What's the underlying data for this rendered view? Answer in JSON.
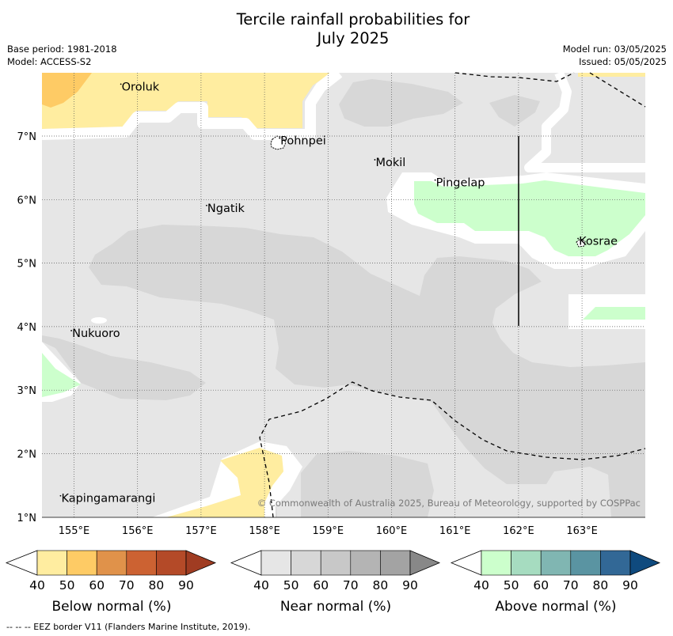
{
  "title_line1": "Tercile rainfall probabilities for",
  "title_line2": "July 2025",
  "base_period": "Base period: 1981-2018",
  "model": "Model: ACCESS-S2",
  "model_run": "Model run: 03/05/2025",
  "issued": "Issued: 05/05/2025",
  "lat_labels": [
    "7°N",
    "6°N",
    "5°N",
    "4°N",
    "3°N",
    "2°N",
    "1°N"
  ],
  "lat_values": [
    7,
    6,
    5,
    4,
    3,
    2,
    1
  ],
  "lon_labels": [
    "155°E",
    "156°E",
    "157°E",
    "158°E",
    "159°E",
    "160°E",
    "161°E",
    "162°E",
    "163°E"
  ],
  "lon_values": [
    155,
    156,
    157,
    158,
    159,
    160,
    161,
    162,
    163
  ],
  "places": [
    {
      "name": "Oroluk",
      "lon": 155.75,
      "lat": 7.73
    },
    {
      "name": "Pohnpei",
      "lon": 158.25,
      "lat": 6.88
    },
    {
      "name": "Mokil",
      "lon": 159.75,
      "lat": 6.54
    },
    {
      "name": "Pingelap",
      "lon": 160.7,
      "lat": 6.22
    },
    {
      "name": "Ngatik",
      "lon": 157.1,
      "lat": 5.82
    },
    {
      "name": "Kosrae",
      "lon": 162.95,
      "lat": 5.3
    },
    {
      "name": "Nukuoro",
      "lon": 154.97,
      "lat": 3.85
    },
    {
      "name": "Kapingamarangi",
      "lon": 154.8,
      "lat": 1.25
    }
  ],
  "copyright": "© Commonwealth of Australia 2025, Bureau of Meteorology, supported by COSPPac",
  "colorbars": [
    {
      "label": "Below normal (%)",
      "ticks": [
        "40",
        "50",
        "60",
        "70",
        "80",
        "90"
      ],
      "colors": [
        "#ffffff",
        "#ffeda0",
        "#fecb65",
        "#e0924a",
        "#cc6232",
        "#b44a28",
        "#a03c22"
      ]
    },
    {
      "label": "Near normal (%)",
      "ticks": [
        "40",
        "50",
        "60",
        "70",
        "80",
        "90"
      ],
      "colors": [
        "#ffffff",
        "#e6e6e6",
        "#d7d7d7",
        "#c8c8c8",
        "#b4b4b4",
        "#a3a3a3",
        "#888888"
      ]
    },
    {
      "label": "Above normal (%)",
      "ticks": [
        "40",
        "50",
        "60",
        "70",
        "80",
        "90"
      ],
      "colors": [
        "#ffffff",
        "#ccffcc",
        "#a6dcc0",
        "#80b6b2",
        "#5a94a2",
        "#326896",
        "#0f4a7e"
      ]
    }
  ],
  "footer": "--  --  -- EEZ border V11 (Flanders Marine Institute, 2019)."
}
